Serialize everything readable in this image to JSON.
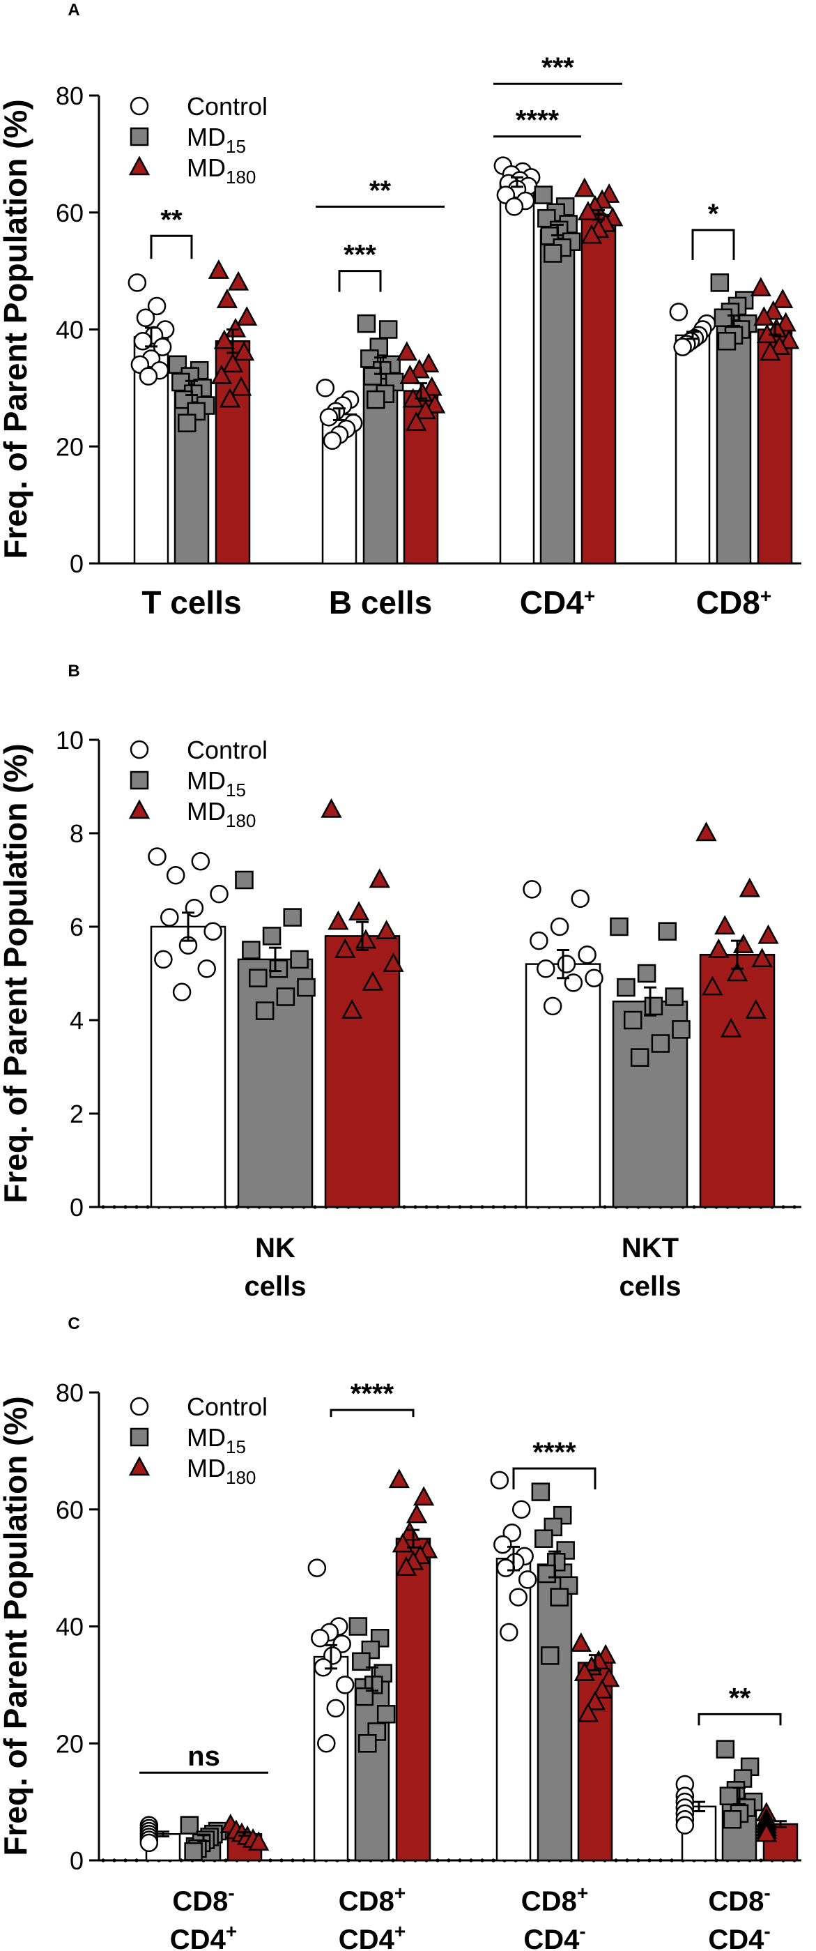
{
  "colors": {
    "control": "#ffffff",
    "md15": "#808080",
    "md180": "#a01a1a",
    "stroke": "#000000"
  },
  "legend": {
    "control": "Control",
    "md15": {
      "base": "MD",
      "sub": "15"
    },
    "md180": {
      "base": "MD",
      "sub": "180"
    }
  },
  "chart_data": [
    {
      "panel": "A",
      "type": "bar",
      "ylabel": "Freq. of Parent Population (%)",
      "ylim": [
        0,
        80
      ],
      "yticks": [
        0,
        20,
        40,
        60,
        80
      ],
      "categories": [
        {
          "lines": [
            {
              "base": "T cells"
            }
          ]
        },
        {
          "lines": [
            {
              "base": "B cells"
            }
          ]
        },
        {
          "lines": [
            {
              "base": "CD4",
              "sup": "+"
            }
          ]
        },
        {
          "lines": [
            {
              "base": "CD8",
              "sup": "+"
            }
          ]
        }
      ],
      "series": [
        {
          "name": "Control",
          "values": [
            38.7,
            25.5,
            65.2,
            39.0
          ],
          "errors": [
            1.6,
            1.0,
            0.8,
            0.6
          ],
          "points": [
            [
              48,
              44,
              42,
              40,
              39,
              38,
              37,
              35,
              34,
              33,
              32
            ],
            [
              30,
              28,
              27,
              26,
              25,
              24,
              23,
              22,
              21
            ],
            [
              68,
              67,
              66.5,
              66,
              65.5,
              65,
              64.5,
              64,
              63,
              62,
              61
            ],
            [
              43,
              41,
              40,
              39,
              38.5,
              38,
              37.5,
              37
            ]
          ]
        },
        {
          "name": "MD15",
          "values": [
            30.0,
            33.8,
            57.0,
            41.5
          ],
          "errors": [
            1.2,
            1.4,
            0.9,
            0.9
          ],
          "points": [
            [
              34,
              33,
              32,
              31,
              30,
              29,
              28,
              27,
              26,
              24
            ],
            [
              41,
              40,
              37,
              35,
              34,
              33,
              32,
              31,
              29,
              28
            ],
            [
              63,
              61,
              60,
              59,
              58,
              57,
              56,
              55,
              54,
              53
            ],
            [
              48,
              45,
              44,
              43,
              42,
              41,
              40,
              39,
              38
            ]
          ]
        },
        {
          "name": "MD180",
          "values": [
            38.0,
            29.5,
            59.6,
            40.0
          ],
          "errors": [
            2.0,
            1.3,
            0.8,
            0.9
          ],
          "points": [
            [
              50,
              48,
              45,
              42,
              40,
              38,
              36,
              34,
              32,
              30,
              28
            ],
            [
              36,
              34,
              33,
              32,
              30,
              29,
              28,
              27,
              26,
              24
            ],
            [
              64,
              63,
              62,
              61,
              60,
              59,
              58,
              57,
              56
            ],
            [
              47,
              45,
              43,
              42,
              41,
              40,
              39,
              38,
              37,
              36
            ]
          ]
        }
      ],
      "significance": [
        {
          "label": "**",
          "cat": 0,
          "from": 0,
          "to": 1,
          "level": 56,
          "style": "bracket",
          "drop": 33
        },
        {
          "label": "***",
          "cat": 1,
          "from": 0,
          "to": 1,
          "level": 50,
          "style": "bracket",
          "drop": 30
        },
        {
          "label": "**",
          "cat": 1,
          "from": 0,
          "to": 2,
          "level": 61,
          "style": "line"
        },
        {
          "label": "****",
          "cat": 2,
          "from": 0,
          "to": 1,
          "level": 73,
          "style": "line"
        },
        {
          "label": "***",
          "cat": 2,
          "from": 0,
          "to": 2,
          "level": 82,
          "style": "line"
        },
        {
          "label": "*",
          "cat": 3,
          "from": 0,
          "to": 1,
          "level": 57,
          "style": "bracket",
          "drop": 43
        }
      ]
    },
    {
      "panel": "B",
      "type": "bar",
      "ylabel": "Freq. of Parent Population (%)",
      "ylim": [
        0,
        10
      ],
      "yticks": [
        0,
        2,
        4,
        6,
        8,
        10
      ],
      "categories": [
        {
          "lines": [
            {
              "base": "NK"
            },
            {
              "base": "cells"
            }
          ]
        },
        {
          "lines": [
            {
              "base": "NKT"
            },
            {
              "base": "cells"
            }
          ]
        }
      ],
      "series": [
        {
          "name": "Control",
          "values": [
            6.0,
            5.2
          ],
          "errors": [
            0.3,
            0.3
          ],
          "points": [
            [
              7.5,
              7.4,
              7.1,
              6.7,
              6.4,
              6.2,
              5.9,
              5.6,
              5.3,
              5.1,
              4.6
            ],
            [
              6.8,
              6.6,
              6.0,
              5.7,
              5.4,
              5.2,
              5.1,
              4.9,
              4.8,
              4.3
            ]
          ]
        },
        {
          "name": "MD15",
          "values": [
            5.3,
            4.4
          ],
          "errors": [
            0.25,
            0.3
          ],
          "points": [
            [
              7.0,
              6.2,
              5.8,
              5.5,
              5.3,
              5.1,
              4.9,
              4.7,
              4.5,
              4.2
            ],
            [
              6.0,
              5.9,
              5.0,
              4.7,
              4.5,
              4.3,
              4.0,
              3.8,
              3.5,
              3.2
            ]
          ]
        },
        {
          "name": "MD180",
          "values": [
            5.8,
            5.4
          ],
          "errors": [
            0.3,
            0.3
          ],
          "points": [
            [
              8.5,
              7.0,
              6.3,
              6.1,
              5.9,
              5.7,
              5.5,
              5.2,
              4.8,
              4.2
            ],
            [
              8.0,
              6.8,
              6.0,
              5.8,
              5.6,
              5.5,
              5.3,
              5.0,
              4.7,
              4.2,
              3.8
            ]
          ]
        }
      ],
      "significance": []
    },
    {
      "panel": "C",
      "type": "bar",
      "ylabel": "Freq. of Parent Population (%)",
      "ylim": [
        0,
        80
      ],
      "yticks": [
        0,
        20,
        40,
        60,
        80
      ],
      "categories": [
        {
          "lines": [
            {
              "base": "CD8",
              "sup": "-"
            },
            {
              "base": "CD4",
              "sup": "+"
            }
          ]
        },
        {
          "lines": [
            {
              "base": "CD8",
              "sup": "+"
            },
            {
              "base": "CD4",
              "sup": "+"
            }
          ]
        },
        {
          "lines": [
            {
              "base": "CD8",
              "sup": "+"
            },
            {
              "base": "CD4",
              "sup": "-"
            }
          ]
        },
        {
          "lines": [
            {
              "base": "CD8",
              "sup": "-"
            },
            {
              "base": "CD4",
              "sup": "-"
            }
          ]
        }
      ],
      "series": [
        {
          "name": "Control",
          "values": [
            4.5,
            34.8,
            51.6,
            9.2
          ],
          "errors": [
            0.4,
            2.0,
            2.0,
            0.8
          ],
          "points": [
            [
              6,
              5.5,
              5,
              4.5,
              4,
              3.5,
              3
            ],
            [
              50,
              40,
              39,
              38,
              37,
              35,
              33,
              30,
              26,
              20
            ],
            [
              65,
              60,
              56,
              54,
              52,
              51,
              50,
              48,
              45,
              39
            ],
            [
              13,
              11,
              10,
              9,
              8,
              7,
              6
            ]
          ]
        },
        {
          "name": "MD15",
          "values": [
            3.8,
            31.0,
            50.6,
            11.0
          ],
          "errors": [
            0.5,
            2.0,
            2.2,
            1.4
          ],
          "points": [
            [
              6,
              5,
              4.5,
              4,
              3.5,
              3,
              2,
              1.5
            ],
            [
              40,
              38,
              36,
              34,
              32,
              30,
              28,
              25,
              22,
              20
            ],
            [
              63,
              59,
              57,
              55,
              53,
              51,
              49,
              47,
              45,
              35
            ],
            [
              19,
              16,
              14,
              12,
              11,
              10,
              9,
              8,
              7
            ]
          ]
        },
        {
          "name": "MD180",
          "values": [
            4.5,
            55.0,
            33.8,
            6.2
          ],
          "errors": [
            0.3,
            1.5,
            1.3,
            0.5
          ],
          "points": [
            [
              6,
              5,
              4.5,
              4,
              3.5,
              3
            ],
            [
              65,
              62,
              59,
              56,
              54,
              53,
              52,
              51,
              50
            ],
            [
              37,
              35,
              34,
              33,
              32,
              31,
              29,
              27,
              25
            ],
            [
              8,
              7,
              6.5,
              6,
              5.5,
              5,
              4.5
            ]
          ]
        }
      ],
      "significance": [
        {
          "label": "ns",
          "cat": 0,
          "from": 0,
          "to": 2,
          "level": 15,
          "style": "line"
        },
        {
          "label": "****",
          "cat": 1,
          "from": 0,
          "to": 2,
          "level": 77,
          "style": "bracket",
          "drop": 10
        },
        {
          "label": "****",
          "cat": 2,
          "from": 0,
          "to": 2,
          "level": 67,
          "style": "bracket",
          "drop": 30
        },
        {
          "label": "**",
          "cat": 3,
          "from": 0,
          "to": 2,
          "level": 25,
          "style": "bracket",
          "drop": 16
        }
      ]
    }
  ]
}
